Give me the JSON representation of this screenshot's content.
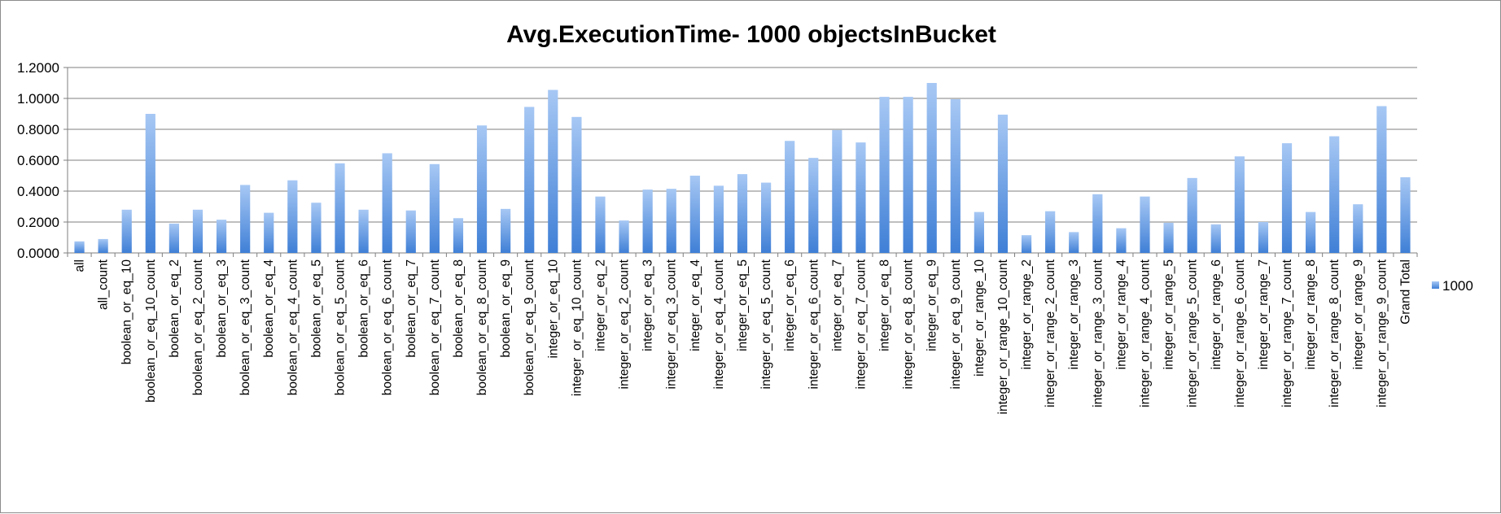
{
  "chart_data": {
    "type": "bar",
    "title": "Avg.ExecutionTime- 1000 objectsInBucket",
    "xlabel": "",
    "ylabel": "",
    "ylim": [
      0,
      1.2
    ],
    "yticks": [
      "0.0000",
      "0.2000",
      "0.4000",
      "0.6000",
      "0.8000",
      "1.0000",
      "1.2000"
    ],
    "grid": true,
    "legend_position": "right",
    "colors": {
      "bar_top": "#a7c8f4",
      "bar_bottom": "#3f7fd6",
      "grid": "#7f7f7f",
      "axis": "#7f7f7f"
    },
    "categories": [
      "all",
      "all_count",
      "boolean_or_eq_10",
      "boolean_or_eq_10_count",
      "boolean_or_eq_2",
      "boolean_or_eq_2_count",
      "boolean_or_eq_3",
      "boolean_or_eq_3_count",
      "boolean_or_eq_4",
      "boolean_or_eq_4_count",
      "boolean_or_eq_5",
      "boolean_or_eq_5_count",
      "boolean_or_eq_6",
      "boolean_or_eq_6_count",
      "boolean_or_eq_7",
      "boolean_or_eq_7_count",
      "boolean_or_eq_8",
      "boolean_or_eq_8_count",
      "boolean_or_eq_9",
      "boolean_or_eq_9_count",
      "integer_or_eq_10",
      "integer_or_eq_10_count",
      "integer_or_eq_2",
      "integer_or_eq_2_count",
      "integer_or_eq_3",
      "integer_or_eq_3_count",
      "integer_or_eq_4",
      "integer_or_eq_4_count",
      "integer_or_eq_5",
      "integer_or_eq_5_count",
      "integer_or_eq_6",
      "integer_or_eq_6_count",
      "integer_or_eq_7",
      "integer_or_eq_7_count",
      "integer_or_eq_8",
      "integer_or_eq_8_count",
      "integer_or_eq_9",
      "integer_or_eq_9_count",
      "integer_or_range_10",
      "integer_or_range_10_count",
      "integer_or_range_2",
      "integer_or_range_2_count",
      "integer_or_range_3",
      "integer_or_range_3_count",
      "integer_or_range_4",
      "integer_or_range_4_count",
      "integer_or_range_5",
      "integer_or_range_5_count",
      "integer_or_range_6",
      "integer_or_range_6_count",
      "integer_or_range_7",
      "integer_or_range_7_count",
      "integer_or_range_8",
      "integer_or_range_8_count",
      "integer_or_range_9",
      "integer_or_range_9_count",
      "Grand Total"
    ],
    "series": [
      {
        "name": "1000",
        "values": [
          0.075,
          0.09,
          0.28,
          0.9,
          0.19,
          0.28,
          0.215,
          0.44,
          0.26,
          0.47,
          0.325,
          0.58,
          0.28,
          0.645,
          0.275,
          0.575,
          0.225,
          0.825,
          0.285,
          0.945,
          1.055,
          0.88,
          0.365,
          0.21,
          0.41,
          0.415,
          0.5,
          0.435,
          0.51,
          0.455,
          0.725,
          0.615,
          0.795,
          0.715,
          1.01,
          1.01,
          1.1,
          0.995,
          0.265,
          0.895,
          0.115,
          0.27,
          0.135,
          0.38,
          0.16,
          0.365,
          0.195,
          0.485,
          0.185,
          0.625,
          0.2,
          0.71,
          0.265,
          0.755,
          0.315,
          0.95,
          0.49
        ]
      }
    ]
  }
}
